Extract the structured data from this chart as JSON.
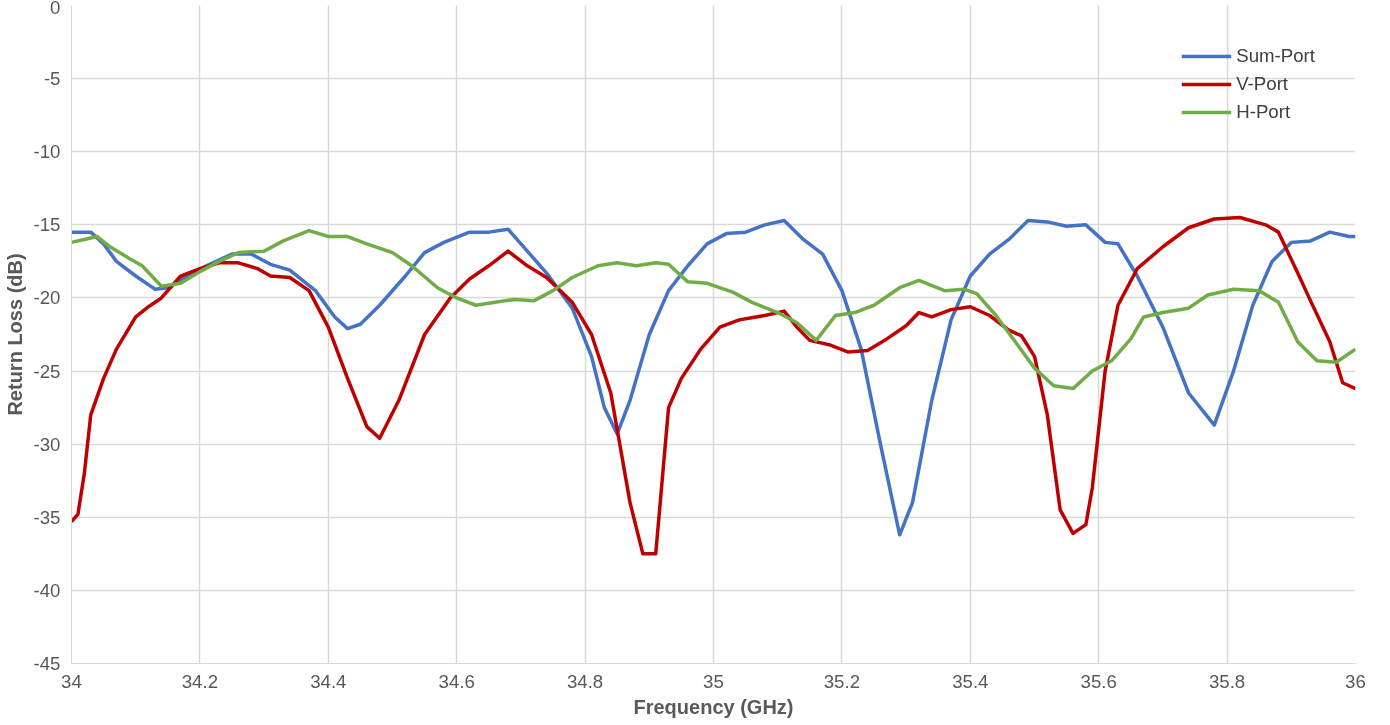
{
  "chart_data": {
    "type": "line",
    "xlabel": "Frequency (GHz)",
    "ylabel": "Return Loss (dB)",
    "xlim": [
      34,
      36
    ],
    "xticks": [
      34,
      34.2,
      34.4,
      34.6,
      34.8,
      35,
      35.2,
      35.4,
      35.6,
      35.8,
      36
    ],
    "ylim": [
      -45,
      0
    ],
    "yticks": [
      -45,
      -40,
      -35,
      -30,
      -25,
      -20,
      -15,
      -10,
      -5,
      0
    ],
    "grid": true,
    "legend": "top right",
    "line_style": "solid",
    "marker": "none",
    "series": [
      {
        "name": "Sum-Port",
        "color": "#4472c4",
        "x": [
          34.0,
          34.03,
          34.05,
          34.07,
          34.1,
          34.13,
          34.15,
          34.18,
          34.21,
          34.25,
          34.28,
          34.31,
          34.34,
          34.38,
          34.41,
          34.43,
          34.45,
          34.48,
          34.52,
          34.55,
          34.58,
          34.62,
          34.65,
          34.68,
          34.71,
          34.74,
          34.78,
          34.81,
          34.83,
          34.85,
          34.87,
          34.9,
          34.93,
          34.96,
          34.99,
          35.02,
          35.05,
          35.08,
          35.11,
          35.14,
          35.17,
          35.2,
          35.23,
          35.26,
          35.29,
          35.31,
          35.34,
          35.37,
          35.4,
          35.43,
          35.46,
          35.49,
          35.52,
          35.55,
          35.58,
          35.61,
          35.63,
          35.66,
          35.7,
          35.74,
          35.78,
          35.81,
          35.84,
          35.87,
          35.9,
          35.93,
          35.96,
          35.99,
          36.0
        ],
        "values": [
          -15.5,
          -15.5,
          -16.3,
          -17.5,
          -18.5,
          -19.4,
          -19.3,
          -18.5,
          -17.8,
          -17.0,
          -17.0,
          -17.7,
          -18.1,
          -19.5,
          -21.3,
          -22.1,
          -21.8,
          -20.5,
          -18.5,
          -16.9,
          -16.2,
          -15.5,
          -15.5,
          -15.3,
          -16.8,
          -18.3,
          -20.7,
          -24,
          -27.5,
          -29.3,
          -27,
          -22.5,
          -19.5,
          -17.8,
          -16.3,
          -15.6,
          -15.5,
          -15.0,
          -14.7,
          -16.0,
          -17.0,
          -19.5,
          -23.5,
          -30,
          -36.2,
          -34,
          -27,
          -21.5,
          -18.5,
          -17.0,
          -16.0,
          -14.7,
          -14.8,
          -15.1,
          -15.0,
          -16.2,
          -16.3,
          -18.5,
          -22,
          -26.5,
          -28.7,
          -25,
          -20.5,
          -17.5,
          -16.2,
          -16.1,
          -15.5,
          -15.8,
          -15.8
        ]
      },
      {
        "name": "V-Port",
        "color": "#c00000",
        "x": [
          34.0,
          34.01,
          34.02,
          34.03,
          34.05,
          34.07,
          34.1,
          34.12,
          34.14,
          34.17,
          34.2,
          34.23,
          34.26,
          34.29,
          34.31,
          34.34,
          34.37,
          34.4,
          34.43,
          34.46,
          34.48,
          34.51,
          34.55,
          34.59,
          34.62,
          34.65,
          34.68,
          34.71,
          34.74,
          34.78,
          34.81,
          34.84,
          34.87,
          34.89,
          34.91,
          34.93,
          34.95,
          34.98,
          35.01,
          35.04,
          35.08,
          35.11,
          35.13,
          35.15,
          35.18,
          35.21,
          35.24,
          35.27,
          35.3,
          35.32,
          35.34,
          35.37,
          35.4,
          35.43,
          35.46,
          35.48,
          35.5,
          35.52,
          35.54,
          35.56,
          35.58,
          35.59,
          35.61,
          35.63,
          35.66,
          35.7,
          35.74,
          35.78,
          35.82,
          35.86,
          35.88,
          35.91,
          35.93,
          35.96,
          35.98,
          36.0
        ],
        "values": [
          -35.3,
          -34.8,
          -32,
          -28,
          -25.5,
          -23.5,
          -21.3,
          -20.6,
          -20.0,
          -18.5,
          -18.0,
          -17.6,
          -17.6,
          -18.0,
          -18.5,
          -18.6,
          -19.5,
          -22,
          -25.5,
          -28.8,
          -29.6,
          -27,
          -22.5,
          -20,
          -18.7,
          -17.8,
          -16.8,
          -17.8,
          -18.6,
          -20.3,
          -22.5,
          -26.5,
          -34,
          -37.5,
          -37.5,
          -27.5,
          -25.5,
          -23.5,
          -22,
          -21.5,
          -21.2,
          -20.9,
          -22,
          -22.9,
          -23.2,
          -23.7,
          -23.6,
          -22.8,
          -21.9,
          -21.0,
          -21.3,
          -20.8,
          -20.6,
          -21.2,
          -22.2,
          -22.6,
          -24,
          -28,
          -34.5,
          -36.1,
          -35.5,
          -33,
          -25,
          -20.5,
          -18,
          -16.5,
          -15.2,
          -14.6,
          -14.5,
          -15.0,
          -15.5,
          -18.3,
          -20.2,
          -23,
          -25.8,
          -26.2
        ]
      },
      {
        "name": "H-Port",
        "color": "#70ad47",
        "x": [
          34.0,
          34.02,
          34.04,
          34.06,
          34.09,
          34.11,
          34.14,
          34.17,
          34.2,
          34.23,
          34.26,
          34.3,
          34.33,
          34.37,
          34.4,
          34.43,
          34.46,
          34.5,
          34.53,
          34.57,
          34.6,
          34.63,
          34.66,
          34.69,
          34.72,
          34.75,
          34.78,
          34.82,
          34.85,
          34.88,
          34.91,
          34.93,
          34.96,
          34.99,
          35.03,
          35.06,
          35.1,
          35.13,
          35.16,
          35.19,
          35.22,
          35.25,
          35.29,
          35.32,
          35.36,
          35.39,
          35.41,
          35.44,
          35.47,
          35.5,
          35.53,
          35.56,
          35.59,
          35.62,
          35.65,
          35.67,
          35.7,
          35.74,
          35.77,
          35.81,
          35.85,
          35.88,
          35.91,
          35.94,
          35.97,
          36.0
        ],
        "values": [
          -16.2,
          -16.0,
          -15.8,
          -16.5,
          -17.3,
          -17.8,
          -19.2,
          -19.0,
          -18.2,
          -17.5,
          -16.9,
          -16.8,
          -16.1,
          -15.4,
          -15.8,
          -15.8,
          -16.3,
          -16.9,
          -17.8,
          -19.3,
          -20.0,
          -20.5,
          -20.3,
          -20.1,
          -20.2,
          -19.5,
          -18.6,
          -17.8,
          -17.6,
          -17.8,
          -17.6,
          -17.7,
          -18.9,
          -19.0,
          -19.6,
          -20.3,
          -21.0,
          -21.7,
          -22.9,
          -21.2,
          -21.0,
          -20.5,
          -19.3,
          -18.8,
          -19.5,
          -19.4,
          -19.7,
          -21.2,
          -23.0,
          -24.8,
          -26.0,
          -26.2,
          -25.0,
          -24.3,
          -22.8,
          -21.3,
          -21.0,
          -20.7,
          -19.8,
          -19.4,
          -19.5,
          -20.3,
          -23.0,
          -24.3,
          -24.4,
          -23.5
        ]
      }
    ]
  }
}
